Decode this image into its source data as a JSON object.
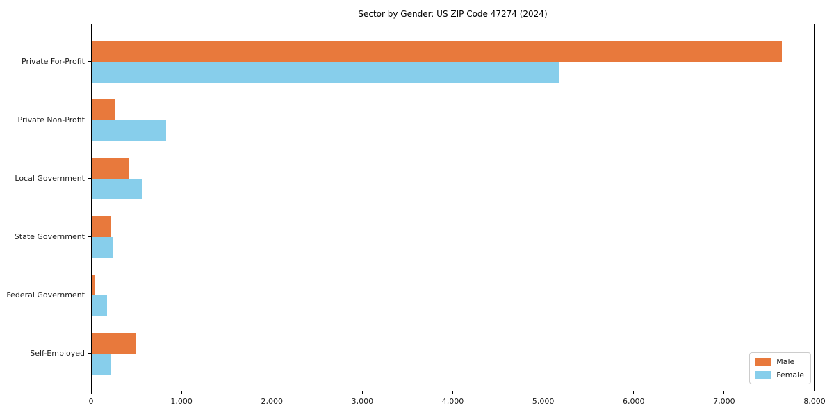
{
  "chart_data": {
    "type": "bar",
    "orientation": "horizontal",
    "title": "Sector by Gender: US ZIP Code 47274 (2024)",
    "categories": [
      "Private For-Profit",
      "Private Non-Profit",
      "Local Government",
      "State Government",
      "Federal Government",
      "Self-Employed"
    ],
    "series": [
      {
        "name": "Male",
        "color": "#e8793c",
        "values": [
          7630,
          250,
          410,
          205,
          40,
          495
        ]
      },
      {
        "name": "Female",
        "color": "#87ceeb",
        "values": [
          5170,
          820,
          560,
          235,
          170,
          215
        ]
      }
    ],
    "xlabel": "",
    "ylabel": "",
    "xlim": [
      0,
      8000
    ],
    "x_ticks": [
      0,
      1000,
      2000,
      3000,
      4000,
      5000,
      6000,
      7000,
      8000
    ],
    "x_tick_labels": [
      "0",
      "1,000",
      "2,000",
      "3,000",
      "4,000",
      "5,000",
      "6,000",
      "7,000",
      "8,000"
    ],
    "grid": false,
    "legend": {
      "position": "lower right"
    }
  }
}
